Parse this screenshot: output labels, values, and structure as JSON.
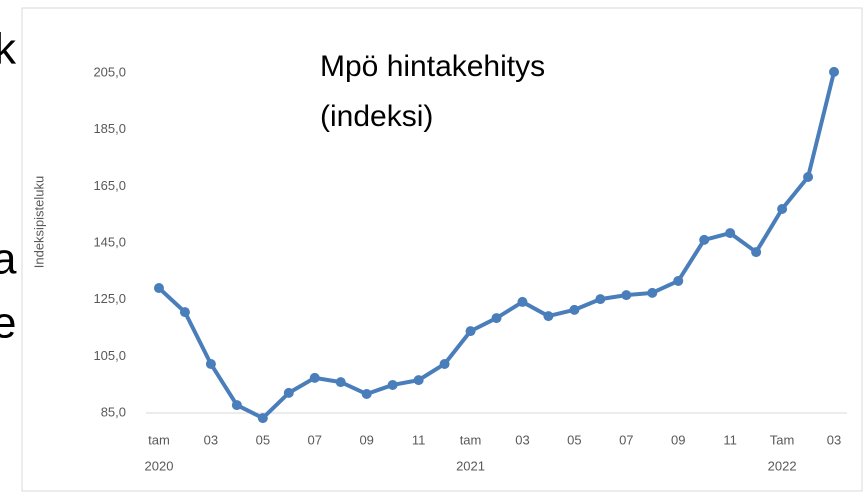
{
  "slide_fragments": [
    "k",
    "a",
    "e"
  ],
  "chart_data": {
    "type": "line",
    "title": [
      "Mpö hintakehitys",
      "(indeksi)"
    ],
    "ylabel": "Indeksipisteluku",
    "categories": [
      "tam",
      null,
      "03",
      null,
      "05",
      null,
      "07",
      null,
      "09",
      null,
      "11",
      null,
      "tam",
      null,
      "03",
      null,
      "05",
      null,
      "07",
      null,
      "09",
      null,
      "11",
      null,
      "Tam",
      null,
      "03"
    ],
    "category_years": [
      "2020",
      null,
      null,
      null,
      null,
      null,
      null,
      null,
      null,
      null,
      null,
      null,
      "2021",
      null,
      null,
      null,
      null,
      null,
      null,
      null,
      null,
      null,
      null,
      null,
      "2022",
      null,
      null
    ],
    "values": [
      129.1,
      120.6,
      102.3,
      87.8,
      83.2,
      92.1,
      97.4,
      95.9,
      91.7,
      94.9,
      96.6,
      102.3,
      113.9,
      118.5,
      124.2,
      119.2,
      121.4,
      125.2,
      126.6,
      127.4,
      131.6,
      146.1,
      148.5,
      141.8,
      157,
      168.3,
      205.4
    ],
    "color": "#4a7ebb",
    "ylim": [
      85,
      205
    ],
    "yticks": [
      {
        "value": 85,
        "label": "85,0"
      },
      {
        "value": 105,
        "label": "105,0"
      },
      {
        "value": 125,
        "label": "125,0"
      },
      {
        "value": 145,
        "label": "145,0"
      },
      {
        "value": 165,
        "label": "165,0"
      },
      {
        "value": 185,
        "label": "185,0"
      },
      {
        "value": 205,
        "label": "205,0"
      }
    ],
    "grid": false
  }
}
